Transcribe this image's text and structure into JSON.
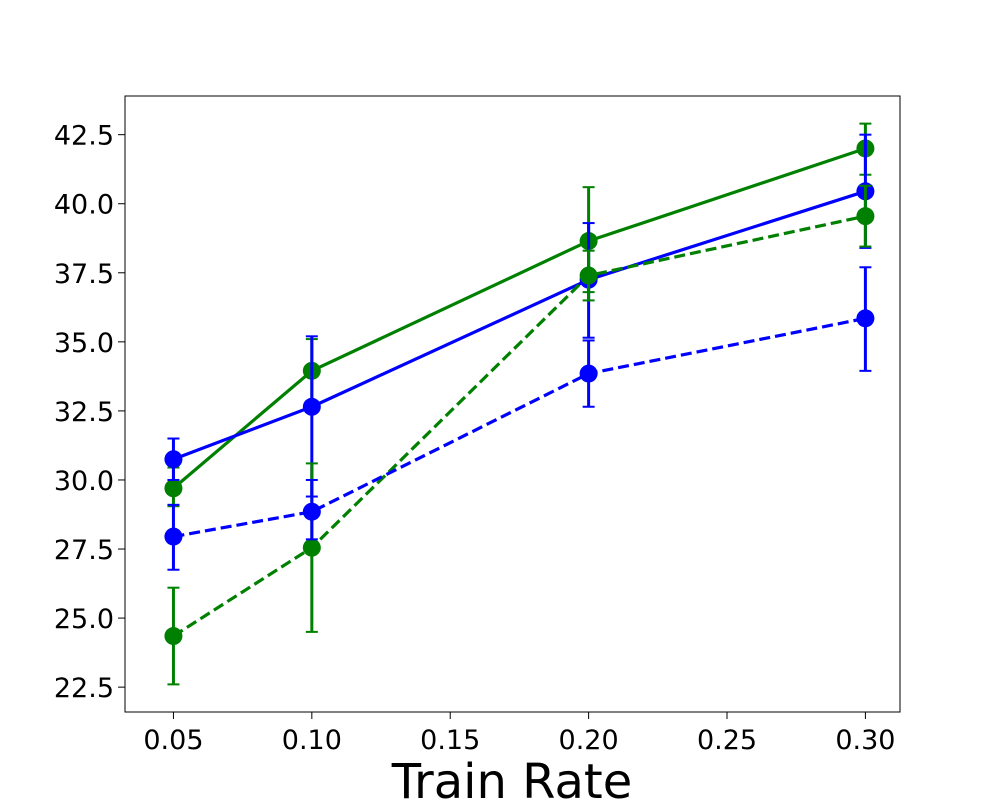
{
  "chart_data": {
    "type": "line",
    "title": "",
    "xlabel": "Train Rate",
    "ylabel": "",
    "xlim": [
      0.0325,
      0.3125
    ],
    "ylim": [
      21.6,
      43.9
    ],
    "x": [
      0.05,
      0.1,
      0.2,
      0.3
    ],
    "xticks": [
      0.05,
      0.1,
      0.15,
      0.2,
      0.25,
      0.3
    ],
    "xtick_labels": [
      "0.05",
      "0.10",
      "0.15",
      "0.20",
      "0.25",
      "0.30"
    ],
    "yticks": [
      22.5,
      25.0,
      27.5,
      30.0,
      32.5,
      35.0,
      37.5,
      40.0,
      42.5
    ],
    "ytick_labels": [
      "22.5",
      "25.0",
      "27.5",
      "30.0",
      "32.5",
      "35.0",
      "37.5",
      "40.0",
      "42.5"
    ],
    "grid": false,
    "legend": null,
    "series": [
      {
        "name": "green-solid",
        "color": "#008000",
        "linestyle": "solid",
        "values": [
          29.7,
          33.95,
          38.65,
          42.0
        ],
        "err_low": [
          29.05,
          32.6,
          36.8,
          41.05
        ],
        "err_high": [
          30.45,
          35.1,
          40.6,
          42.9
        ]
      },
      {
        "name": "blue-solid",
        "color": "#0000ff",
        "linestyle": "solid",
        "values": [
          30.75,
          32.65,
          37.25,
          40.45
        ],
        "err_low": [
          30.0,
          29.4,
          35.15,
          38.4
        ],
        "err_high": [
          31.5,
          35.2,
          39.3,
          42.5
        ]
      },
      {
        "name": "green-dashed",
        "color": "#008000",
        "linestyle": "dashed",
        "values": [
          24.35,
          27.55,
          37.4,
          39.55
        ],
        "err_low": [
          22.6,
          24.5,
          36.5,
          38.45
        ],
        "err_high": [
          26.1,
          30.6,
          38.3,
          40.65
        ]
      },
      {
        "name": "blue-dashed",
        "color": "#0000ff",
        "linestyle": "dashed",
        "values": [
          27.95,
          28.85,
          33.85,
          35.85
        ],
        "err_low": [
          26.75,
          27.85,
          32.65,
          33.95
        ],
        "err_high": [
          29.1,
          30.0,
          35.05,
          37.7
        ]
      }
    ]
  }
}
